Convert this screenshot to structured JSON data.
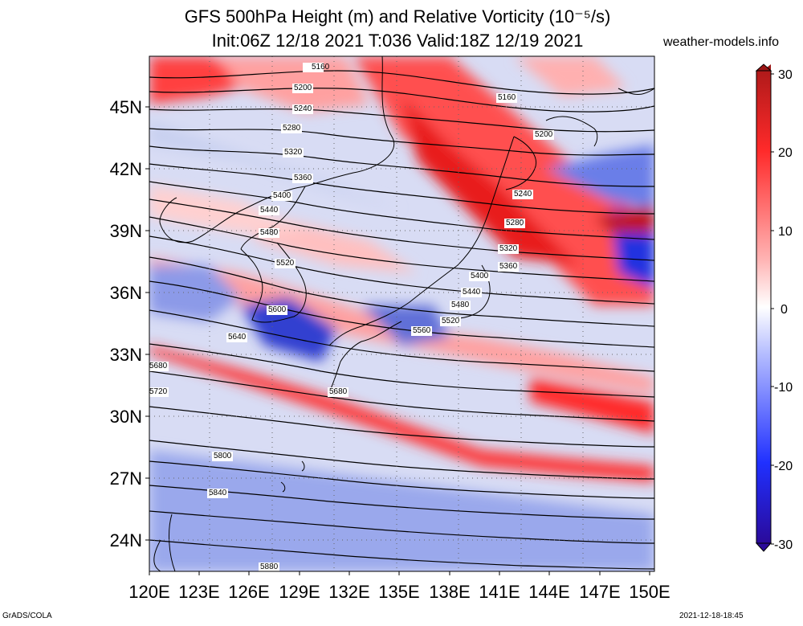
{
  "title": {
    "line1": "GFS 500hPa Height (m) and Relative Vorticity (10⁻⁵/s)",
    "line2": "Init:06Z 12/18 2021 T:036 Valid:18Z 12/19 2021"
  },
  "source": "weather-models.info",
  "footer": {
    "left": "GrADS/COLA",
    "right": "2021-12-18-18:45"
  },
  "map": {
    "lon_range": [
      120,
      150
    ],
    "lat_range": [
      22.5,
      47.5
    ],
    "lon_ticks": [
      "120E",
      "123E",
      "126E",
      "129E",
      "132E",
      "135E",
      "138E",
      "141E",
      "144E",
      "147E",
      "150E"
    ],
    "lat_ticks": [
      "45N",
      "42N",
      "39N",
      "36N",
      "33N",
      "30N",
      "27N",
      "24N"
    ],
    "contour_labels": [
      "5160",
      "5160",
      "5200",
      "5200",
      "5240",
      "5240",
      "5280",
      "5280",
      "5320",
      "5320",
      "5360",
      "5360",
      "5400",
      "5400",
      "5440",
      "5440",
      "5480",
      "5480",
      "5520",
      "5520",
      "5560",
      "5600",
      "5640",
      "5680",
      "5680",
      "5720",
      "5800",
      "5840",
      "5880"
    ]
  },
  "colorbar": {
    "ticks": [
      "30",
      "20",
      "10",
      "0",
      "-10",
      "-20",
      "-30"
    ],
    "colors": {
      "max": "#9c1515",
      "pos": "#ff2020",
      "zero": "#ffffff",
      "neg": "#2030ff",
      "min": "#2a0a9a"
    }
  }
}
